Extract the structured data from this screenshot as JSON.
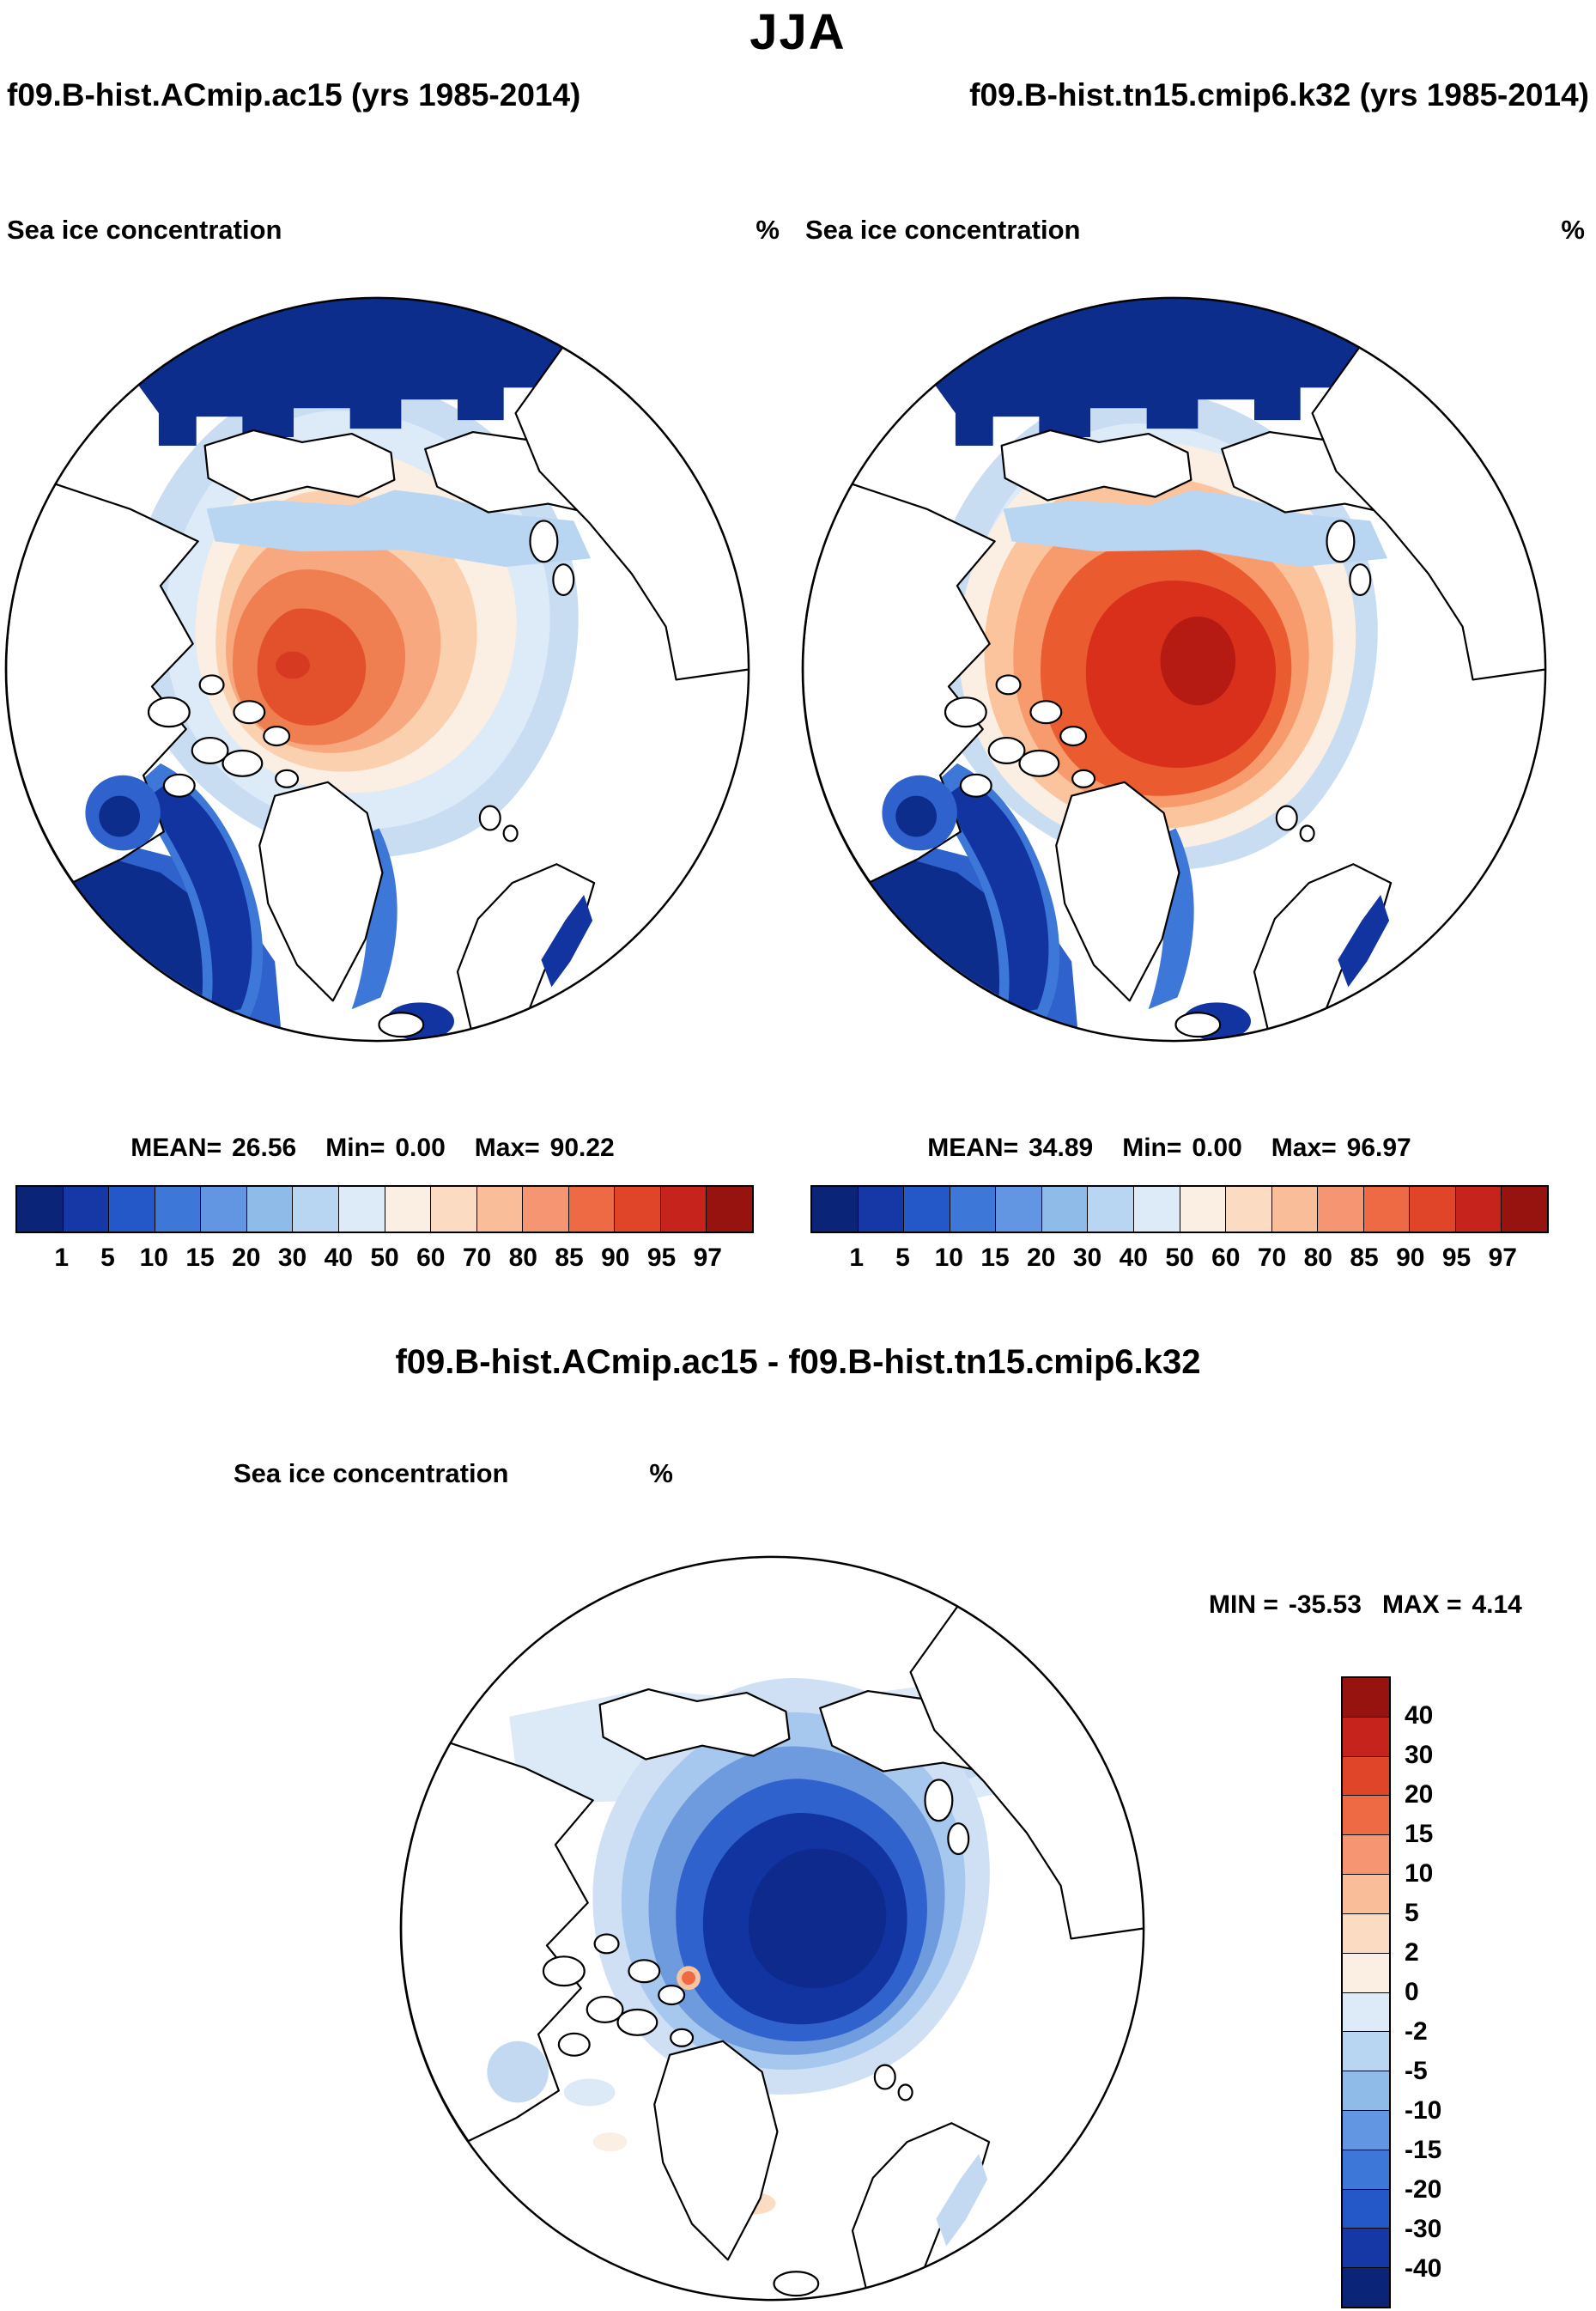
{
  "title": "JJA",
  "panels": {
    "left": {
      "run_label": "f09.B-hist.ACmip.ac15 (yrs 1985-2014)",
      "field_label": "Sea ice concentration",
      "units": "%",
      "stats": {
        "mean_label": "MEAN=",
        "mean_value": "26.56",
        "min_label": "Min=",
        "min_value": "0.00",
        "max_label": "Max=",
        "max_value": "90.22"
      }
    },
    "right": {
      "run_label": "f09.B-hist.tn15.cmip6.k32 (yrs 1985-2014)",
      "field_label": "Sea ice concentration",
      "units": "%",
      "stats": {
        "mean_label": "MEAN=",
        "mean_value": "34.89",
        "min_label": "Min=",
        "min_value": "0.00",
        "max_label": "Max=",
        "max_value": "96.97"
      }
    },
    "diff": {
      "title": "f09.B-hist.ACmip.ac15 - f09.B-hist.tn15.cmip6.k32",
      "field_label": "Sea ice concentration",
      "units": "%",
      "stats": {
        "min_label": "MIN =",
        "min_value": "-35.53",
        "max_label": "MAX =",
        "max_value": "4.14"
      }
    }
  },
  "colorbar_conc": {
    "ticks": [
      "1",
      "5",
      "10",
      "15",
      "20",
      "30",
      "40",
      "50",
      "60",
      "70",
      "80",
      "85",
      "90",
      "95",
      "97"
    ],
    "colors": [
      "#0a2577",
      "#1638a6",
      "#2458c8",
      "#3d78d8",
      "#6396e2",
      "#8fbbe9",
      "#b8d5f1",
      "#ddeaf8",
      "#fbeee2",
      "#fbdcc3",
      "#f9bd9a",
      "#f59571",
      "#ee6a44",
      "#e0452a",
      "#c5231b",
      "#971310"
    ]
  },
  "colorbar_diff": {
    "ticks": [
      "40",
      "30",
      "20",
      "15",
      "10",
      "5",
      "2",
      "0",
      "-2",
      "-5",
      "-10",
      "-15",
      "-20",
      "-30",
      "-40"
    ],
    "colors": [
      "#971310",
      "#c5231b",
      "#e0452a",
      "#ee6a44",
      "#f59571",
      "#f9bd9a",
      "#fbdcc3",
      "#fbeee2",
      "#ddeaf8",
      "#b8d5f1",
      "#8fbbe9",
      "#6396e2",
      "#3d78d8",
      "#2458c8",
      "#1638a6",
      "#0a2577"
    ]
  },
  "chart_data": [
    {
      "type": "heatmap",
      "subtype": "north_polar_stereographic_map",
      "season": "JJA",
      "title": "f09.B-hist.ACmip.ac15 (yrs 1985-2014)",
      "variable": "Sea ice concentration",
      "units": "%",
      "stats": {
        "mean": 26.56,
        "min": 0.0,
        "max": 90.22
      },
      "levels": [
        1,
        5,
        10,
        15,
        20,
        30,
        40,
        50,
        60,
        70,
        80,
        85,
        90,
        95,
        97
      ],
      "colormap": "blue-white-red diverging, low concentration blue, high concentration red",
      "legend_position": "bottom"
    },
    {
      "type": "heatmap",
      "subtype": "north_polar_stereographic_map",
      "season": "JJA",
      "title": "f09.B-hist.tn15.cmip6.k32 (yrs 1985-2014)",
      "variable": "Sea ice concentration",
      "units": "%",
      "stats": {
        "mean": 34.89,
        "min": 0.0,
        "max": 96.97
      },
      "levels": [
        1,
        5,
        10,
        15,
        20,
        30,
        40,
        50,
        60,
        70,
        80,
        85,
        90,
        95,
        97
      ],
      "colormap": "blue-white-red diverging, low concentration blue, high concentration red",
      "legend_position": "bottom"
    },
    {
      "type": "heatmap",
      "subtype": "north_polar_stereographic_map",
      "season": "JJA",
      "title": "f09.B-hist.ACmip.ac15 - f09.B-hist.tn15.cmip6.k32",
      "variable": "Sea ice concentration difference",
      "units": "%",
      "stats": {
        "min": -35.53,
        "max": 4.14
      },
      "levels": [
        40,
        30,
        20,
        15,
        10,
        5,
        2,
        0,
        -2,
        -5,
        -10,
        -15,
        -20,
        -30,
        -40
      ],
      "colormap": "red positive, blue negative; central Arctic strongly negative",
      "legend_position": "right"
    }
  ]
}
